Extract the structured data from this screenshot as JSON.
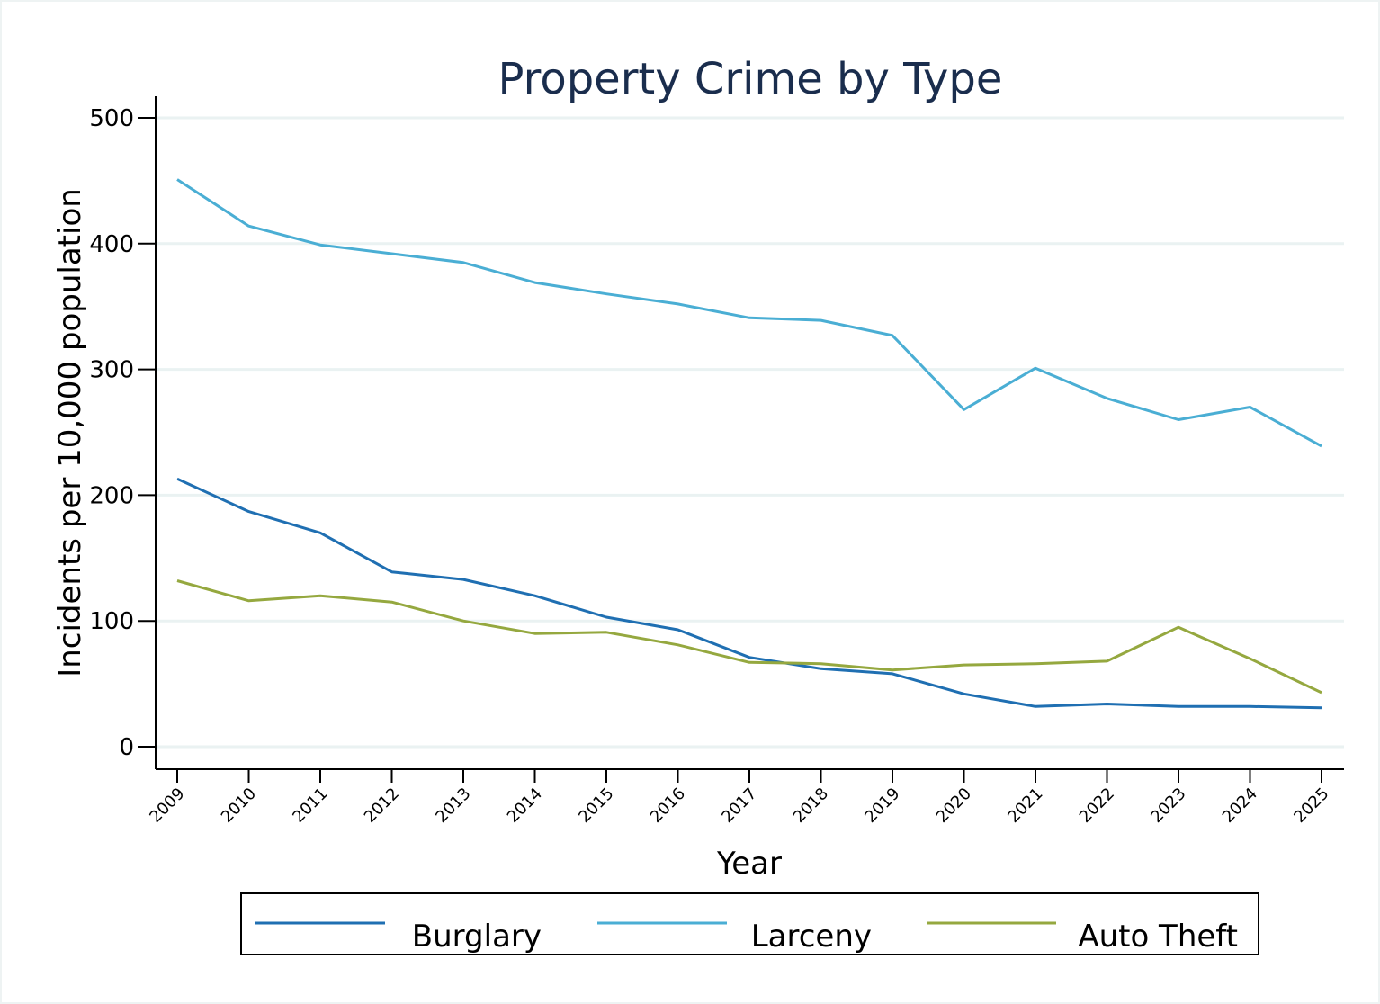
{
  "chart_data": {
    "type": "line",
    "title": "Property Crime by Type",
    "xlabel": "Year",
    "ylabel": "Incidents per 10,000 population",
    "x": [
      "2009",
      "2010",
      "2011",
      "2012",
      "2013",
      "2014",
      "2015",
      "2016",
      "2017",
      "2018",
      "2019",
      "2020",
      "2021",
      "2022",
      "2023",
      "2024",
      "2025"
    ],
    "ylim": [
      0,
      500
    ],
    "yticks": [
      0,
      100,
      200,
      300,
      400,
      500
    ],
    "grid": true,
    "legend_position": "bottom",
    "series": [
      {
        "name": "Burglary",
        "color": "#1f6fb2",
        "values": [
          213,
          187,
          170,
          139,
          133,
          120,
          103,
          93,
          71,
          62,
          58,
          42,
          32,
          34,
          32,
          32,
          31
        ]
      },
      {
        "name": "Larceny",
        "color": "#4aaed4",
        "values": [
          451,
          414,
          399,
          392,
          385,
          369,
          360,
          352,
          341,
          339,
          327,
          268,
          301,
          277,
          260,
          270,
          239
        ]
      },
      {
        "name": "Auto Theft",
        "color": "#95a83f",
        "values": [
          132,
          116,
          120,
          115,
          100,
          90,
          91,
          81,
          67,
          66,
          61,
          65,
          66,
          68,
          95,
          70,
          43
        ]
      }
    ]
  }
}
